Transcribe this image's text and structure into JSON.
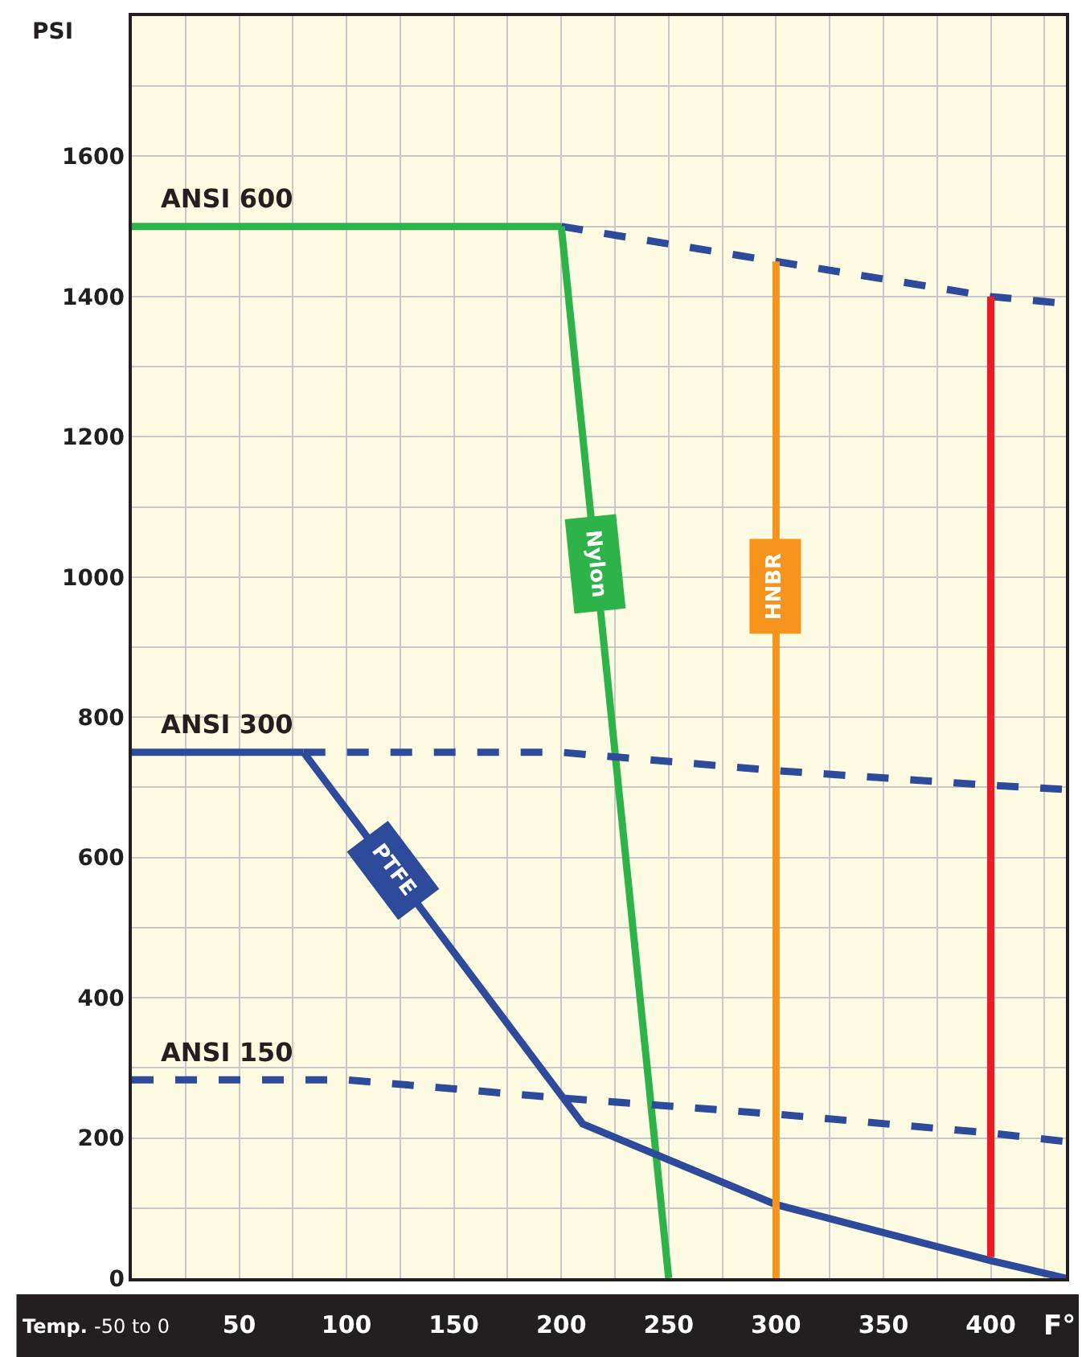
{
  "chart_data": {
    "type": "line",
    "xlabel": "Temp.",
    "ylabel": "PSI",
    "annotations": [
      "F°"
    ],
    "xlim": [
      0,
      435
    ],
    "ylim": [
      0,
      1800
    ],
    "xticks": [
      {
        "value": 0,
        "label": "-50 to 0"
      },
      {
        "value": 25,
        "label": null
      },
      50,
      {
        "value": 75,
        "label": null
      },
      100,
      {
        "value": 125,
        "label": null
      },
      150,
      {
        "value": 175,
        "label": null
      },
      200,
      {
        "value": 225,
        "label": null
      },
      250,
      {
        "value": 275,
        "label": null
      },
      300,
      {
        "value": 325,
        "label": null
      },
      350,
      {
        "value": 375,
        "label": null
      },
      400,
      {
        "value": 425,
        "label": null
      }
    ],
    "yticks": [
      0,
      {
        "value": 100,
        "label": null
      },
      200,
      {
        "value": 300,
        "label": null
      },
      400,
      {
        "value": 500,
        "label": null
      },
      600,
      {
        "value": 700,
        "label": null
      },
      800,
      {
        "value": 900,
        "label": null
      },
      1000,
      {
        "value": 1100,
        "label": null
      },
      1200,
      {
        "value": 1300,
        "label": null
      },
      1400,
      {
        "value": 1500,
        "label": null
      },
      1600,
      {
        "value": 1700,
        "label": null
      }
    ],
    "grid": true,
    "legend": false,
    "marker": "none",
    "series": [
      {
        "name": "ANSI 600",
        "color": "#2db34a",
        "line_style": "solid",
        "x": [
          0,
          200
        ],
        "values": [
          1500,
          1500
        ]
      },
      {
        "color": "#2e4a9a",
        "line_style": "dashed",
        "x": [
          200,
          300,
          400,
          435
        ],
        "values": [
          1500,
          1450,
          1400,
          1390
        ]
      },
      {
        "name": "Nylon",
        "color": "#2db34a",
        "line_style": "solid",
        "x": [
          200,
          250
        ],
        "values": [
          1500,
          0
        ]
      },
      {
        "name": "ANSI 300",
        "color": "#2e4a9a",
        "line_style": "solid",
        "x": [
          0,
          80
        ],
        "values": [
          750,
          750
        ]
      },
      {
        "name": "PTFE",
        "color": "#2e4a9a",
        "line_style": "solid",
        "x": [
          80,
          210,
          300,
          400,
          435
        ],
        "values": [
          750,
          220,
          105,
          25,
          0
        ]
      },
      {
        "color": "#2e4a9a",
        "line_style": "dashed",
        "x": [
          80,
          200,
          300,
          400,
          435
        ],
        "values": [
          750,
          750,
          724,
          703,
          697
        ]
      },
      {
        "name": "ANSI 150",
        "color": "#2e4a9a",
        "line_style": "dashed",
        "x": [
          0,
          100,
          200,
          300,
          400,
          435
        ],
        "values": [
          283,
          283,
          257,
          234,
          207,
          195
        ]
      },
      {
        "name": "HNBR",
        "color": "#f7941d",
        "line_style": "solid",
        "x": [
          300,
          300
        ],
        "values": [
          0,
          1450
        ]
      },
      {
        "color": "#ed1c24",
        "line_style": "solid",
        "x": [
          400,
          400
        ],
        "values": [
          30,
          1400
        ]
      }
    ]
  }
}
